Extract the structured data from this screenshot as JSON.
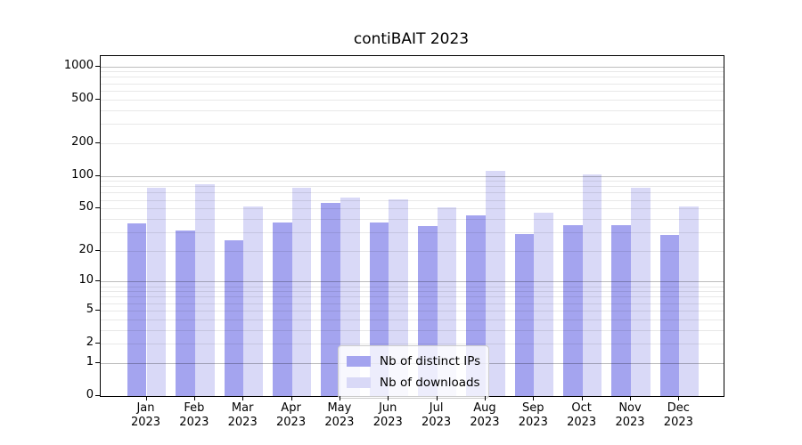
{
  "title": "contiBAIT 2023",
  "chart_data": {
    "type": "bar",
    "title": "contiBAIT 2023",
    "months": [
      "Jan",
      "Feb",
      "Mar",
      "Apr",
      "May",
      "Jun",
      "Jul",
      "Aug",
      "Sep",
      "Oct",
      "Nov",
      "Dec"
    ],
    "year": "2023",
    "series": [
      {
        "name": "Nb of distinct IPs",
        "color": "#a4a4ef",
        "values": [
          36,
          31,
          25,
          37,
          56,
          37,
          34,
          43,
          29,
          35,
          35,
          28
        ]
      },
      {
        "name": "Nb of downloads",
        "color": "#d9d9f7",
        "values": [
          77,
          83,
          52,
          78,
          63,
          61,
          51,
          111,
          46,
          102,
          77,
          52
        ]
      }
    ],
    "xlabel": "",
    "ylabel": "",
    "y_scale": "log1p",
    "ylim": [
      0,
      1240
    ],
    "y_ticks": [
      0,
      1,
      2,
      5,
      10,
      20,
      50,
      100,
      200,
      500,
      1000
    ],
    "gridlines": {
      "major": [
        1,
        10,
        100,
        1000
      ],
      "minor": [
        2,
        3,
        4,
        5,
        6,
        7,
        8,
        9,
        20,
        30,
        40,
        50,
        60,
        70,
        80,
        90,
        200,
        300,
        400,
        500,
        600,
        700,
        800,
        900
      ]
    },
    "grid": "horizontal major+minor",
    "legend_position": "lower center"
  },
  "legend": {
    "items": [
      {
        "label": "Nb of distinct IPs",
        "color": "#a4a4ef"
      },
      {
        "label": "Nb of downloads",
        "color": "#d9d9f7"
      }
    ]
  }
}
